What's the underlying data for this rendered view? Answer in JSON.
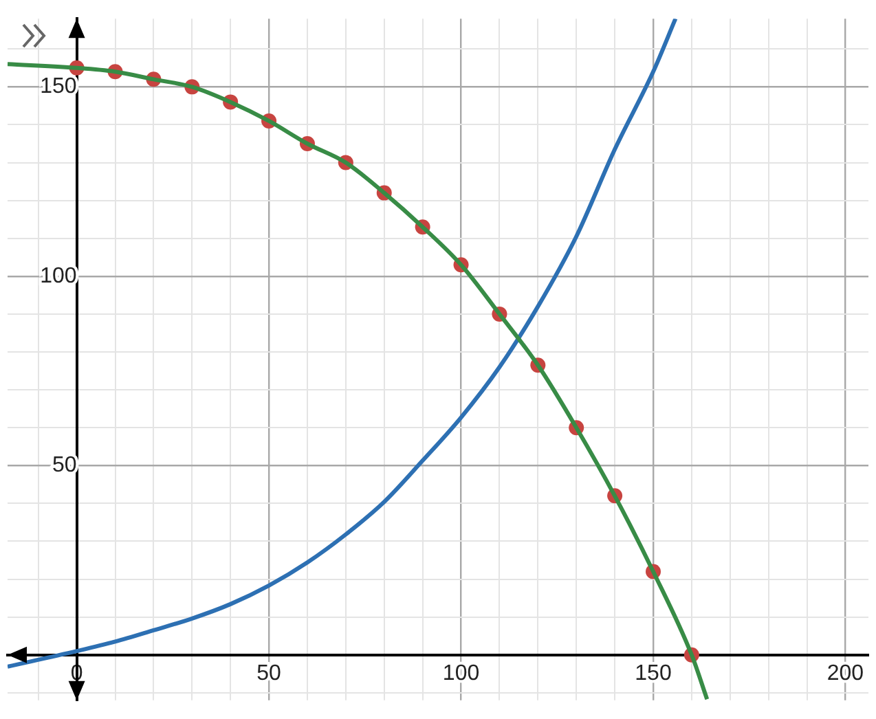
{
  "chart_data": {
    "type": "line",
    "xlim": [
      -18,
      206
    ],
    "ylim": [
      -12,
      168
    ],
    "xticks": [
      {
        "value": -10,
        "label": null
      },
      0,
      {
        "value": 10,
        "label": null
      },
      {
        "value": 20,
        "label": null
      },
      {
        "value": 30,
        "label": null
      },
      {
        "value": 40,
        "label": null
      },
      50,
      {
        "value": 60,
        "label": null
      },
      {
        "value": 70,
        "label": null
      },
      {
        "value": 80,
        "label": null
      },
      {
        "value": 90,
        "label": null
      },
      100,
      {
        "value": 110,
        "label": null
      },
      {
        "value": 120,
        "label": null
      },
      {
        "value": 130,
        "label": null
      },
      {
        "value": 140,
        "label": null
      },
      150,
      {
        "value": 160,
        "label": null
      },
      {
        "value": 170,
        "label": null
      },
      {
        "value": 180,
        "label": null
      },
      {
        "value": 190,
        "label": null
      },
      200
    ],
    "yticks": [
      {
        "value": -10,
        "label": null
      },
      {
        "value": 0,
        "label": null
      },
      {
        "value": 10,
        "label": null
      },
      {
        "value": 20,
        "label": null
      },
      {
        "value": 30,
        "label": null
      },
      {
        "value": 40,
        "label": null
      },
      50,
      {
        "value": 60,
        "label": null
      },
      {
        "value": 70,
        "label": null
      },
      {
        "value": 80,
        "label": null
      },
      {
        "value": 90,
        "label": null
      },
      100,
      {
        "value": 110,
        "label": null
      },
      {
        "value": 120,
        "label": null
      },
      {
        "value": 130,
        "label": null
      },
      {
        "value": 140,
        "label": null
      },
      150,
      {
        "value": 160,
        "label": null
      }
    ],
    "grid": true,
    "legend": false,
    "line_style": "solid",
    "series": [
      {
        "type": "line",
        "color": "#388c46",
        "x": [
          -18,
          0,
          10,
          20,
          30,
          40,
          50,
          60,
          70,
          80,
          90,
          100,
          110,
          120,
          130,
          140,
          150,
          160,
          164
        ],
        "values": [
          156,
          155,
          154,
          152,
          150,
          146,
          141,
          135,
          130,
          122,
          113,
          103,
          90,
          76.5,
          60,
          42,
          22,
          0,
          -11.7
        ]
      },
      {
        "type": "line",
        "color": "#2d70b3",
        "x": [
          -18,
          0,
          10,
          20,
          30,
          40,
          50,
          60,
          70,
          80,
          90,
          100,
          110,
          120,
          130,
          140,
          150,
          155.8
        ],
        "values": [
          -3.1,
          1,
          3.5,
          6.5,
          9.6,
          13.4,
          18.3,
          24.4,
          31.8,
          40.4,
          51.3,
          62.7,
          76,
          92,
          110.5,
          133.5,
          154,
          168
        ]
      },
      {
        "type": "scatter",
        "color": "#c74440",
        "marker": "circle",
        "x": [
          0,
          10,
          20,
          30,
          40,
          50,
          60,
          70,
          80,
          90,
          100,
          110,
          120,
          130,
          140,
          150,
          160
        ],
        "values": [
          155,
          154,
          152,
          150,
          146,
          141,
          135,
          130,
          122,
          113,
          103,
          90,
          76.5,
          60,
          42,
          22,
          0
        ]
      }
    ]
  }
}
